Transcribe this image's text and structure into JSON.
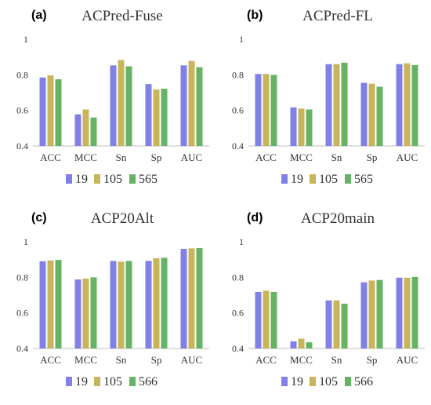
{
  "colors": {
    "s19": "#8080e6",
    "s105": "#c8b45a",
    "s565": "#66b366"
  },
  "chart_data": [
    {
      "type": "bar",
      "panel": "(a)",
      "title": "ACPred-Fuse",
      "categories": [
        "ACC",
        "MCC",
        "Sn",
        "Sp",
        "AUC"
      ],
      "ylim": [
        0.4,
        1.0
      ],
      "yticks": [
        "0.4",
        "0.6",
        "0.8",
        "1"
      ],
      "legend_position": "bottom",
      "series": [
        {
          "name": "19",
          "values": [
            0.785,
            0.578,
            0.853,
            0.748,
            0.853
          ]
        },
        {
          "name": "105",
          "values": [
            0.797,
            0.605,
            0.883,
            0.718,
            0.878
          ]
        },
        {
          "name": "565",
          "values": [
            0.775,
            0.56,
            0.848,
            0.722,
            0.843
          ]
        }
      ]
    },
    {
      "type": "bar",
      "panel": "(b)",
      "title": "ACPred-FL",
      "categories": [
        "ACC",
        "MCC",
        "Sn",
        "Sp",
        "AUC"
      ],
      "ylim": [
        0.4,
        1.0
      ],
      "yticks": [
        "0.4",
        "0.6",
        "0.8",
        "1"
      ],
      "legend_position": "bottom",
      "series": [
        {
          "name": "19",
          "values": [
            0.805,
            0.617,
            0.86,
            0.755,
            0.86
          ]
        },
        {
          "name": "105",
          "values": [
            0.805,
            0.61,
            0.86,
            0.75,
            0.865
          ]
        },
        {
          "name": "565",
          "values": [
            0.8,
            0.605,
            0.868,
            0.733,
            0.855
          ]
        }
      ]
    },
    {
      "type": "bar",
      "panel": "(c)",
      "title": "ACP20Alt",
      "categories": [
        "ACC",
        "MCC",
        "Sn",
        "Sp",
        "AUC"
      ],
      "ylim": [
        0.4,
        1.0
      ],
      "yticks": [
        "0.4",
        "0.6",
        "0.8",
        "1"
      ],
      "legend_position": "bottom",
      "series": [
        {
          "name": "19",
          "values": [
            0.89,
            0.788,
            0.892,
            0.892,
            0.96
          ]
        },
        {
          "name": "105",
          "values": [
            0.895,
            0.793,
            0.888,
            0.907,
            0.963
          ]
        },
        {
          "name": "566",
          "values": [
            0.898,
            0.8,
            0.892,
            0.91,
            0.965
          ]
        }
      ]
    },
    {
      "type": "bar",
      "panel": "(d)",
      "title": "ACP20main",
      "categories": [
        "ACC",
        "MCC",
        "Sn",
        "Sp",
        "AUC"
      ],
      "ylim": [
        0.4,
        1.0
      ],
      "yticks": [
        "0.4",
        "0.6",
        "0.8",
        "1"
      ],
      "legend_position": "bottom",
      "series": [
        {
          "name": "19",
          "values": [
            0.718,
            0.44,
            0.67,
            0.772,
            0.798
          ]
        },
        {
          "name": "105",
          "values": [
            0.725,
            0.455,
            0.67,
            0.782,
            0.798
          ]
        },
        {
          "name": "566",
          "values": [
            0.718,
            0.435,
            0.652,
            0.785,
            0.802
          ]
        }
      ]
    }
  ]
}
